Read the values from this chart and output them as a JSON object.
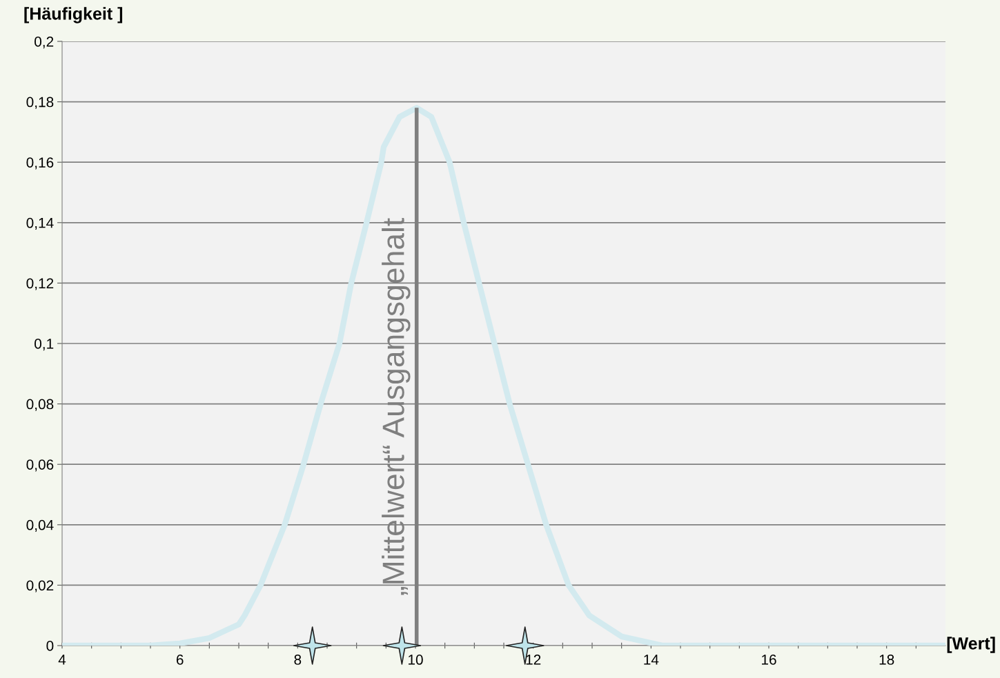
{
  "chart_data": {
    "type": "line",
    "ylabel": "[Häufigkeit ]",
    "xlabel": "[Wert]",
    "xlim": [
      4,
      19
    ],
    "ylim": [
      0,
      0.2
    ],
    "xticks": [
      4,
      {
        "value": 4.5,
        "label": null
      },
      {
        "value": 5,
        "label": null
      },
      {
        "value": 5.5,
        "label": null
      },
      6,
      {
        "value": 6.5,
        "label": null
      },
      {
        "value": 7,
        "label": null
      },
      {
        "value": 7.5,
        "label": null
      },
      8,
      {
        "value": 8.5,
        "label": null
      },
      {
        "value": 9,
        "label": null
      },
      {
        "value": 9.5,
        "label": null
      },
      10,
      {
        "value": 10.5,
        "label": null
      },
      {
        "value": 11,
        "label": null
      },
      {
        "value": 11.5,
        "label": null
      },
      12,
      {
        "value": 12.5,
        "label": null
      },
      {
        "value": 13,
        "label": null
      },
      {
        "value": 13.5,
        "label": null
      },
      14,
      {
        "value": 14.5,
        "label": null
      },
      {
        "value": 15,
        "label": null
      },
      {
        "value": 15.5,
        "label": null
      },
      16,
      {
        "value": 16.5,
        "label": null
      },
      {
        "value": 17,
        "label": null
      },
      {
        "value": 17.5,
        "label": null
      },
      18,
      {
        "value": 18.5,
        "label": null
      }
    ],
    "yticks": [
      0,
      {
        "value": 0.02,
        "label": "0,02"
      },
      {
        "value": 0.04,
        "label": "0,04"
      },
      {
        "value": 0.06,
        "label": "0,06"
      },
      {
        "value": 0.08,
        "label": "0,08"
      },
      {
        "value": 0.1,
        "label": "0,1"
      },
      {
        "value": 0.12,
        "label": "0,12"
      },
      {
        "value": 0.14,
        "label": "0,14"
      },
      {
        "value": 0.16,
        "label": "0,16"
      },
      {
        "value": 0.18,
        "label": "0,18"
      },
      {
        "value": 0.2,
        "label": "0,2"
      }
    ],
    "grid": "y",
    "marker": "none",
    "line_style": "solid",
    "series": [
      {
        "color": "#d3eaef",
        "x": [
          4,
          5,
          5.5,
          6,
          6.5,
          7,
          7.1,
          7.37,
          7.78,
          8.1,
          8.39,
          8.71,
          8.91,
          9.17,
          9.42,
          9.46,
          9.73,
          10.02,
          10.27,
          10.58,
          10.82,
          11.08,
          11.6,
          12.22,
          12.6,
          12.95,
          13.5,
          14.2,
          15,
          16,
          17,
          18,
          19
        ],
        "values": [
          0,
          0,
          0,
          0.0007,
          0.0025,
          0.007,
          0.01,
          0.02,
          0.04,
          0.06,
          0.08,
          0.1,
          0.12,
          0.14,
          0.16,
          0.165,
          0.175,
          0.178,
          0.175,
          0.16,
          0.14,
          0.12,
          0.08,
          0.04,
          0.02,
          0.01,
          0.003,
          0,
          0,
          0,
          0,
          0,
          0
        ]
      },
      {
        "type": "scatter",
        "marker": "star",
        "color": "#bfe4ea",
        "x": [
          8.25,
          9.77,
          11.86
        ],
        "values": [
          0,
          0,
          0
        ]
      }
    ],
    "ref_lines": [
      {
        "axis": "x",
        "value": 10.02,
        "label": "„Mittelwert“ Ausgangsgehalt",
        "color": "#7f7f7f",
        "line_style": "solid"
      }
    ]
  }
}
